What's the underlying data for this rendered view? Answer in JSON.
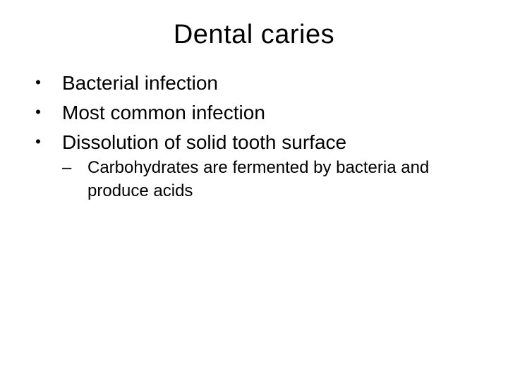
{
  "slide": {
    "title": "Dental caries",
    "title_fontsize": 38,
    "background_color": "#ffffff",
    "text_color": "#000000",
    "bullets": [
      {
        "text": "Bacterial infection",
        "children": []
      },
      {
        "text": "Most common infection",
        "children": []
      },
      {
        "text": "Dissolution of solid tooth surface",
        "children": [
          {
            "text": "Carbohydrates are fermented by bacteria and produce acids"
          }
        ]
      }
    ],
    "level1_fontsize": 28,
    "level2_fontsize": 24,
    "level1_marker": "・",
    "level2_marker": "–"
  }
}
